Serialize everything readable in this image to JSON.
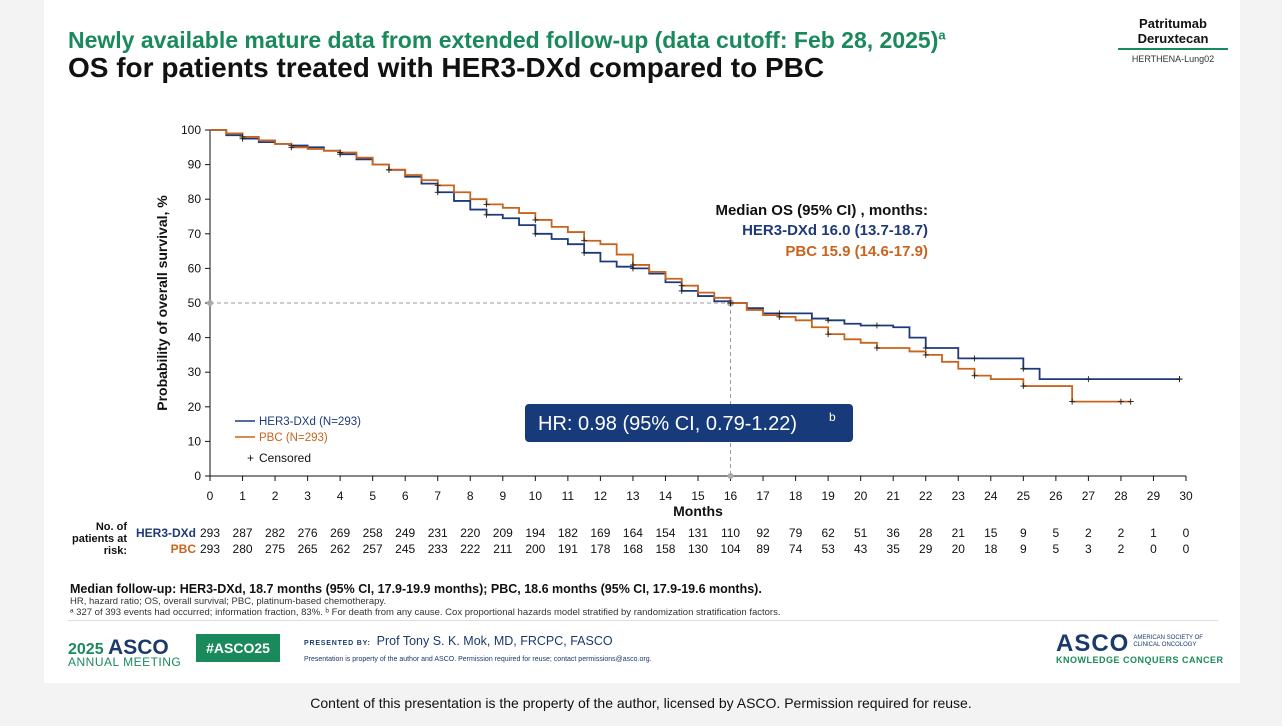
{
  "header": {
    "subtitle": "Newly available mature data from extended follow-up (data cutoff: Feb 28, 2025)",
    "subtitle_sup": "a",
    "title": "OS for patients treated with HER3-DXd compared to PBC",
    "brand_line1": "Patritumab",
    "brand_line2": "Deruxtecan",
    "brand_study": "HERTHENA-Lung02"
  },
  "colors": {
    "her3": "#1f3a7a",
    "pbc": "#c8641e",
    "green": "#1a8a5c",
    "hr_box": "#163a7a"
  },
  "chart_data": {
    "type": "line",
    "ylabel": "Probability of overall survival, %",
    "xlabel": "Months",
    "xlim": [
      0,
      30
    ],
    "ylim": [
      0,
      100
    ],
    "xticks": [
      0,
      1,
      2,
      3,
      4,
      5,
      6,
      7,
      8,
      9,
      10,
      11,
      12,
      13,
      14,
      15,
      16,
      17,
      18,
      19,
      20,
      21,
      22,
      23,
      24,
      25,
      26,
      27,
      28,
      29,
      30
    ],
    "yticks": [
      0,
      10,
      20,
      30,
      40,
      50,
      60,
      70,
      80,
      90,
      100
    ],
    "median_reference": {
      "x": 16,
      "y": 50
    },
    "series": [
      {
        "name": "HER3-DXd (N=293)",
        "color": "#1f3a7a",
        "x": [
          0,
          0.5,
          1,
          1.5,
          2,
          2.5,
          3,
          3.5,
          4,
          4.5,
          5,
          5.5,
          6,
          6.5,
          7,
          7.5,
          8,
          8.5,
          9,
          9.5,
          10,
          10.5,
          11,
          11.5,
          12,
          12.5,
          13,
          13.5,
          14,
          14.5,
          15,
          15.5,
          16,
          16.5,
          17,
          17.5,
          18,
          18.5,
          19,
          19.5,
          20,
          20.5,
          21,
          21.5,
          22,
          22.5,
          23,
          23.5,
          24,
          24.5,
          25,
          25.5,
          26,
          27,
          28,
          29,
          29.8
        ],
        "y": [
          100,
          98.5,
          97.5,
          96.5,
          96,
          95.5,
          95,
          94,
          93,
          91.5,
          90,
          88.5,
          86.5,
          84.5,
          82,
          79.5,
          77,
          75.5,
          74.5,
          72.5,
          70,
          68.5,
          67,
          64.5,
          62,
          60.5,
          60,
          58.5,
          56,
          53.5,
          52,
          50.5,
          50,
          48.5,
          47,
          47,
          47,
          45.5,
          45,
          44,
          43.5,
          43.5,
          43,
          40,
          37,
          37,
          34,
          34,
          34,
          34,
          31,
          28,
          28,
          28,
          28,
          28,
          28
        ]
      },
      {
        "name": "PBC (N=293)",
        "color": "#c8641e",
        "x": [
          0,
          0.5,
          1,
          1.5,
          2,
          2.5,
          3,
          3.5,
          4,
          4.5,
          5,
          5.5,
          6,
          6.5,
          7,
          7.5,
          8,
          8.5,
          9,
          9.5,
          10,
          10.5,
          11,
          11.5,
          12,
          12.5,
          13,
          13.5,
          14,
          14.5,
          15,
          15.5,
          16,
          16.5,
          17,
          17.5,
          18,
          18.5,
          19,
          19.5,
          20,
          20.5,
          21,
          21.5,
          22,
          22.5,
          23,
          23.5,
          24,
          24.5,
          25,
          25.5,
          26,
          26.5,
          27,
          27.5,
          28,
          28.3
        ],
        "y": [
          100,
          99,
          98,
          97,
          96,
          95,
          94.5,
          94,
          93.5,
          92,
          90,
          88.5,
          87,
          85.5,
          84,
          82,
          80,
          78.5,
          77.5,
          76,
          74,
          72,
          70.5,
          68,
          67,
          64,
          61,
          59,
          57,
          55,
          53,
          51.5,
          50,
          48,
          46.5,
          46,
          45,
          43,
          41,
          39.5,
          38.5,
          37,
          37,
          36,
          35,
          33,
          31,
          29,
          28,
          28,
          26,
          26,
          26,
          21.5,
          21.5,
          21.5,
          21.5,
          21.5
        ]
      }
    ],
    "censor_label": "Censored",
    "median_os": {
      "heading": "Median OS (95% CI) , months:",
      "her3": "HER3-DXd 16.0 (13.7-18.7)",
      "pbc": "PBC 15.9 (14.6-17.9)"
    },
    "hr_text": "HR: 0.98 (95% CI, 0.79-1.22)",
    "hr_sup": "b"
  },
  "risk_table": {
    "label_line1": "No. of",
    "label_line2": "patients at",
    "label_line3": "risk:",
    "rows": [
      {
        "name": "HER3-DXd",
        "color": "#1f3a7a",
        "values": [
          "293",
          "287",
          "282",
          "276",
          "269",
          "258",
          "249",
          "231",
          "220",
          "209",
          "194",
          "182",
          "169",
          "164",
          "154",
          "131",
          "110",
          "92",
          "79",
          "62",
          "51",
          "36",
          "28",
          "21",
          "15",
          "9",
          "5",
          "2",
          "2",
          "1",
          "0"
        ]
      },
      {
        "name": "PBC",
        "color": "#c8641e",
        "values": [
          "293",
          "280",
          "275",
          "265",
          "262",
          "257",
          "245",
          "233",
          "222",
          "211",
          "200",
          "191",
          "178",
          "168",
          "158",
          "130",
          "104",
          "89",
          "74",
          "53",
          "43",
          "35",
          "29",
          "20",
          "18",
          "9",
          "5",
          "3",
          "2",
          "0",
          "0"
        ]
      }
    ]
  },
  "footnotes": {
    "main": "Median follow-up: HER3-DXd, 18.7 months (95% CI, 17.9-19.9 months); PBC, 18.6 months (95% CI, 17.9-19.6 months).",
    "abbrev": "HR, hazard ratio; OS, overall survival; PBC, platinum-based chemotherapy.",
    "note": "ᵃ 327 of 393 events had occurred; information fraction, 83%. ᵇ For death from any cause. Cox proportional hazards model stratified by randomization stratification factors."
  },
  "footer": {
    "year": "2025",
    "asco": "ASCO",
    "annual": "ANNUAL MEETING",
    "hashtag": "#ASCO25",
    "presented_label": "PRESENTED BY:",
    "presenter": "Prof Tony S. K. Mok, MD, FRCPC, FASCO",
    "presnote": "Presentation is property of the author and ASCO. Permission required for reuse; contact permissions@asco.org.",
    "logo_word": "ASCO",
    "logo_side1": "AMERICAN SOCIETY OF",
    "logo_side2": "CLINICAL ONCOLOGY",
    "tagline": "KNOWLEDGE CONQUERS CANCER"
  },
  "copyright": "Content of this presentation is the property of the author, licensed by ASCO. Permission required for reuse."
}
